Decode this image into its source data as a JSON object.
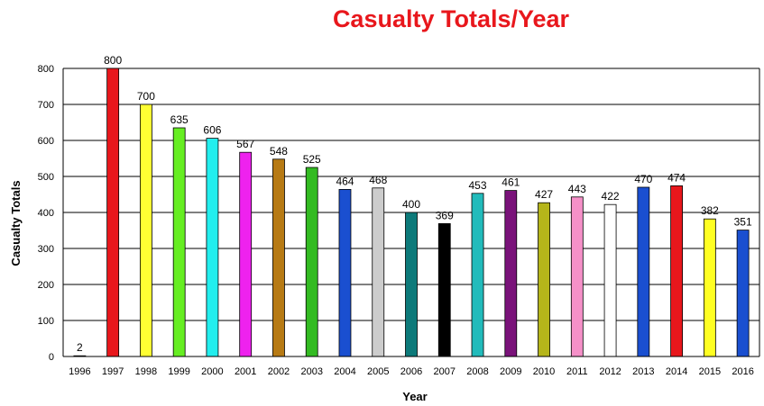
{
  "chart_data": {
    "type": "bar",
    "title": "Casualty Totals/Year",
    "xlabel": "Year",
    "ylabel": "Casualty Totals",
    "ylim": [
      0,
      800
    ],
    "yticks": [
      "0",
      "100",
      "200",
      "300",
      "400",
      "500",
      "600",
      "700",
      "800"
    ],
    "grid": true,
    "categories": [
      "1996",
      "1997",
      "1998",
      "1999",
      "2000",
      "2001",
      "2002",
      "2003",
      "2004",
      "2005",
      "2006",
      "2007",
      "2008",
      "2009",
      "2010",
      "2011",
      "2012",
      "2013",
      "2014",
      "2015",
      "2016"
    ],
    "values": [
      2,
      800,
      700,
      635,
      606,
      567,
      548,
      525,
      464,
      468,
      400,
      369,
      453,
      461,
      427,
      443,
      422,
      470,
      474,
      382,
      351
    ],
    "colors": [
      "#ffffff",
      "#e8171c",
      "#ffff33",
      "#66ee22",
      "#22eeee",
      "#ee22ee",
      "#b77a14",
      "#33bb22",
      "#1a4fd0",
      "#cccccc",
      "#0d7a7a",
      "#000000",
      "#22bbbb",
      "#7a127a",
      "#b5b51a",
      "#f590c8",
      "#ffffff",
      "#1a4fd0",
      "#e8171c",
      "#ffff22",
      "#1a4fd0"
    ]
  }
}
